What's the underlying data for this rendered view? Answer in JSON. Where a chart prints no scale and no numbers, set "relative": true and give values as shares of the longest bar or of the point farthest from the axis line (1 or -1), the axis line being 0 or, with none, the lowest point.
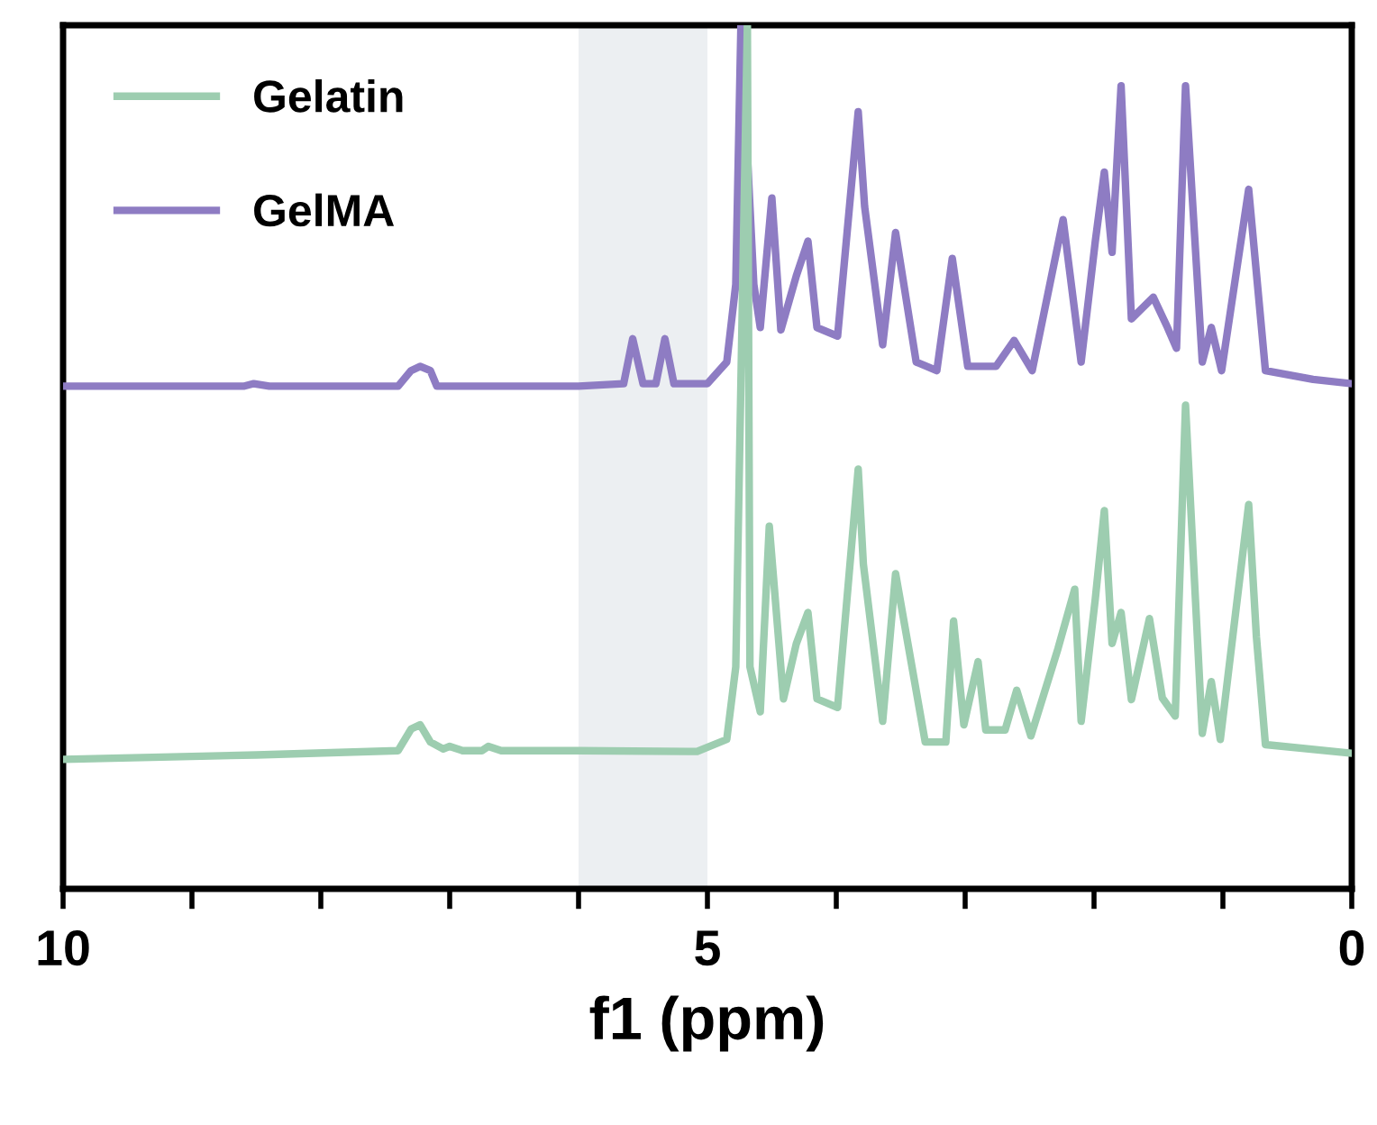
{
  "chart_data": {
    "type": "line",
    "xlabel": "f1 (ppm)",
    "relative": true,
    "legend": "top left",
    "grid": false,
    "marker": "none",
    "line_style": "solid",
    "xlim": [
      10,
      0
    ],
    "xticks": [
      10,
      {
        "value": 9,
        "label": null
      },
      {
        "value": 8,
        "label": null
      },
      {
        "value": 7,
        "label": null
      },
      {
        "value": 6,
        "label": null
      },
      5,
      {
        "value": 4,
        "label": null
      },
      {
        "value": 3,
        "label": null
      },
      {
        "value": 2,
        "label": null
      },
      {
        "value": 1,
        "label": null
      },
      0
    ],
    "bands": [
      {
        "axis": "x",
        "from": 6,
        "to": 5,
        "color": "#eceff2"
      }
    ],
    "series": [
      {
        "name": "Gelatin",
        "color": "#9dcdb0",
        "x": [
          10,
          8.5,
          7.4,
          7.3,
          7.23,
          7.15,
          7.05,
          7.0,
          6.9,
          6.75,
          6.7,
          6.6,
          6.0,
          5.08,
          4.85,
          4.78,
          4.69,
          4.67,
          4.59,
          4.52,
          4.41,
          4.31,
          4.22,
          4.15,
          3.99,
          3.83,
          3.79,
          3.64,
          3.54,
          3.31,
          3.15,
          3.09,
          3.01,
          2.9,
          2.84,
          2.69,
          2.6,
          2.49,
          2.28,
          2.15,
          2.1,
          1.99,
          1.92,
          1.86,
          1.79,
          1.71,
          1.57,
          1.47,
          1.37,
          1.29,
          1.16,
          1.09,
          1.02,
          0.8,
          0.74,
          0.67,
          0
        ],
        "values": [
          0.15,
          0.155,
          0.16,
          0.185,
          0.19,
          0.17,
          0.162,
          0.165,
          0.16,
          0.16,
          0.165,
          0.16,
          0.16,
          0.159,
          0.173,
          0.257,
          1.0,
          0.257,
          0.205,
          0.42,
          0.22,
          0.284,
          0.32,
          0.22,
          0.21,
          0.486,
          0.376,
          0.194,
          0.365,
          0.17,
          0.17,
          0.31,
          0.19,
          0.263,
          0.184,
          0.184,
          0.23,
          0.177,
          0.278,
          0.347,
          0.194,
          0.336,
          0.438,
          0.284,
          0.32,
          0.219,
          0.313,
          0.221,
          0.2,
          0.56,
          0.18,
          0.24,
          0.173,
          0.445,
          0.292,
          0.167,
          0.157
        ]
      },
      {
        "name": "GelMA",
        "color": "#8e7cc3",
        "x": [
          10,
          8.6,
          8.52,
          8.4,
          7.4,
          7.3,
          7.23,
          7.15,
          7.1,
          6.0,
          5.65,
          5.58,
          5.5,
          5.4,
          5.33,
          5.26,
          5.0,
          4.85,
          4.78,
          4.74,
          4.64,
          4.59,
          4.5,
          4.43,
          4.31,
          4.22,
          4.15,
          3.99,
          3.83,
          3.78,
          3.64,
          3.54,
          3.38,
          3.22,
          3.1,
          2.98,
          2.76,
          2.62,
          2.48,
          2.24,
          2.1,
          1.99,
          1.92,
          1.86,
          1.79,
          1.71,
          1.54,
          1.43,
          1.36,
          1.29,
          1.16,
          1.09,
          1.01,
          0.8,
          0.67,
          0.3,
          0
        ],
        "values": [
          0.582,
          0.582,
          0.585,
          0.582,
          0.582,
          0.6,
          0.605,
          0.6,
          0.582,
          0.582,
          0.585,
          0.637,
          0.585,
          0.585,
          0.637,
          0.585,
          0.585,
          0.61,
          0.7,
          1.0,
          0.7,
          0.65,
          0.8,
          0.647,
          0.71,
          0.75,
          0.65,
          0.64,
          0.9,
          0.79,
          0.63,
          0.76,
          0.61,
          0.6,
          0.73,
          0.605,
          0.605,
          0.635,
          0.6,
          0.775,
          0.61,
          0.75,
          0.83,
          0.737,
          0.93,
          0.66,
          0.685,
          0.65,
          0.626,
          0.93,
          0.61,
          0.65,
          0.6,
          0.81,
          0.6,
          0.59,
          0.585
        ]
      }
    ]
  }
}
